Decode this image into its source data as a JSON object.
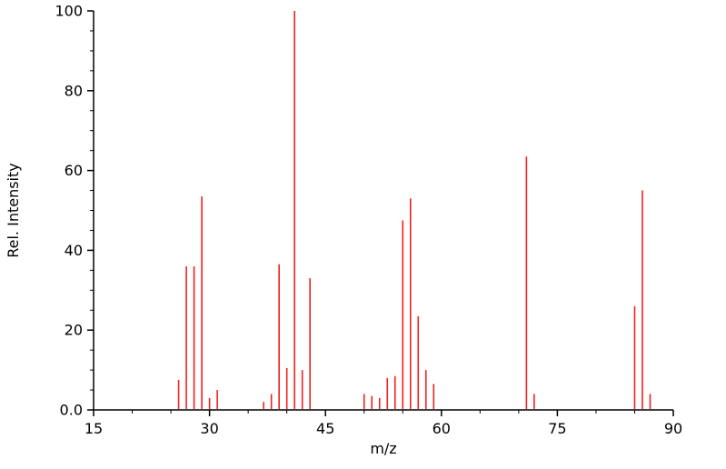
{
  "chart_data": {
    "type": "bar",
    "subtype": "mass-spectrum",
    "title": "",
    "xlabel": "m/z",
    "ylabel": "Rel. Intensity",
    "xlim": [
      15,
      90
    ],
    "ylim": [
      0,
      100
    ],
    "x_major_ticks": [
      15,
      30,
      45,
      60,
      75,
      90
    ],
    "x_tick_labels": [
      "15",
      "30",
      "45",
      "60",
      "75",
      "90"
    ],
    "y_major_ticks": [
      0,
      20,
      40,
      60,
      80,
      100
    ],
    "y_tick_labels": [
      "0.0",
      "20",
      "40",
      "60",
      "80",
      "100"
    ],
    "x_minor_step": 5,
    "y_minor_step": 5,
    "grid": false,
    "legend": null,
    "line_color": "#ee2222",
    "axis_color": "#000000",
    "peaks": [
      [
        26,
        7.5
      ],
      [
        27,
        36
      ],
      [
        28,
        36
      ],
      [
        29,
        53.5
      ],
      [
        30,
        3
      ],
      [
        31,
        5
      ],
      [
        37,
        2
      ],
      [
        38,
        4
      ],
      [
        39,
        36.5
      ],
      [
        40,
        10.5
      ],
      [
        41,
        100
      ],
      [
        42,
        10
      ],
      [
        43,
        33
      ],
      [
        50,
        4
      ],
      [
        51,
        3.5
      ],
      [
        52,
        3
      ],
      [
        53,
        8
      ],
      [
        54,
        8.5
      ],
      [
        55,
        47.5
      ],
      [
        56,
        53
      ],
      [
        57,
        23.5
      ],
      [
        58,
        10
      ],
      [
        59,
        6.5
      ],
      [
        71,
        63.5
      ],
      [
        72,
        4
      ],
      [
        85,
        26
      ],
      [
        86,
        55
      ],
      [
        87,
        4
      ]
    ]
  }
}
